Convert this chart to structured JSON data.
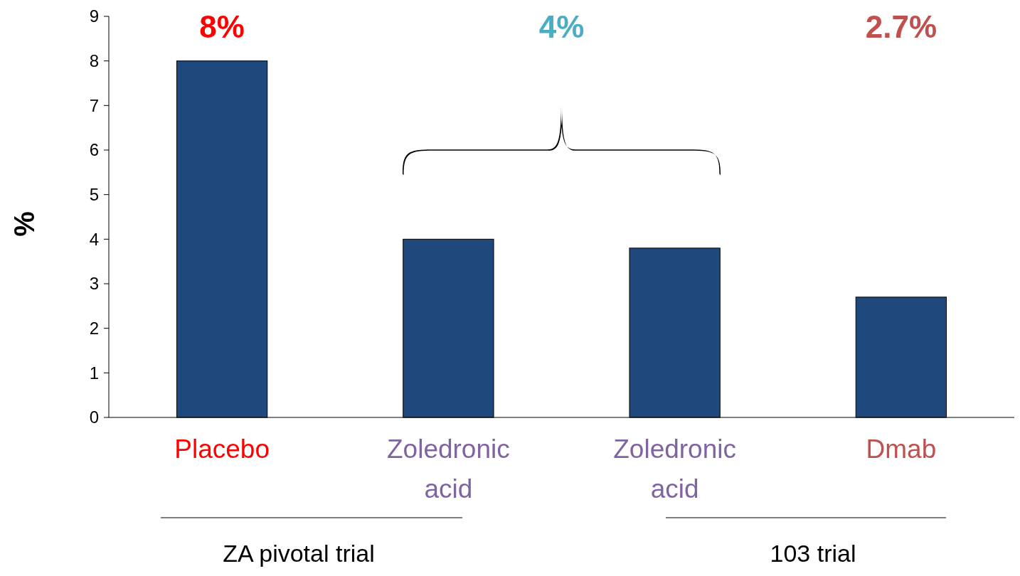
{
  "chart_data": {
    "type": "bar",
    "ylabel": "%",
    "categories": [
      "Placebo",
      "Zoledronic acid",
      "Zoledronic acid",
      "Dmab"
    ],
    "values": [
      8,
      4,
      3.8,
      2.7
    ],
    "color": "#1f497d",
    "value_labels": [
      "8%",
      null,
      null,
      null
    ],
    "ylim": [
      0,
      9
    ],
    "yticks": [
      0,
      1,
      2,
      3,
      4,
      5,
      6,
      7,
      8,
      9
    ],
    "grid": false,
    "annotations": [
      "4%",
      "ZA pivotal trial",
      "103 trial",
      "2.7%"
    ]
  }
}
